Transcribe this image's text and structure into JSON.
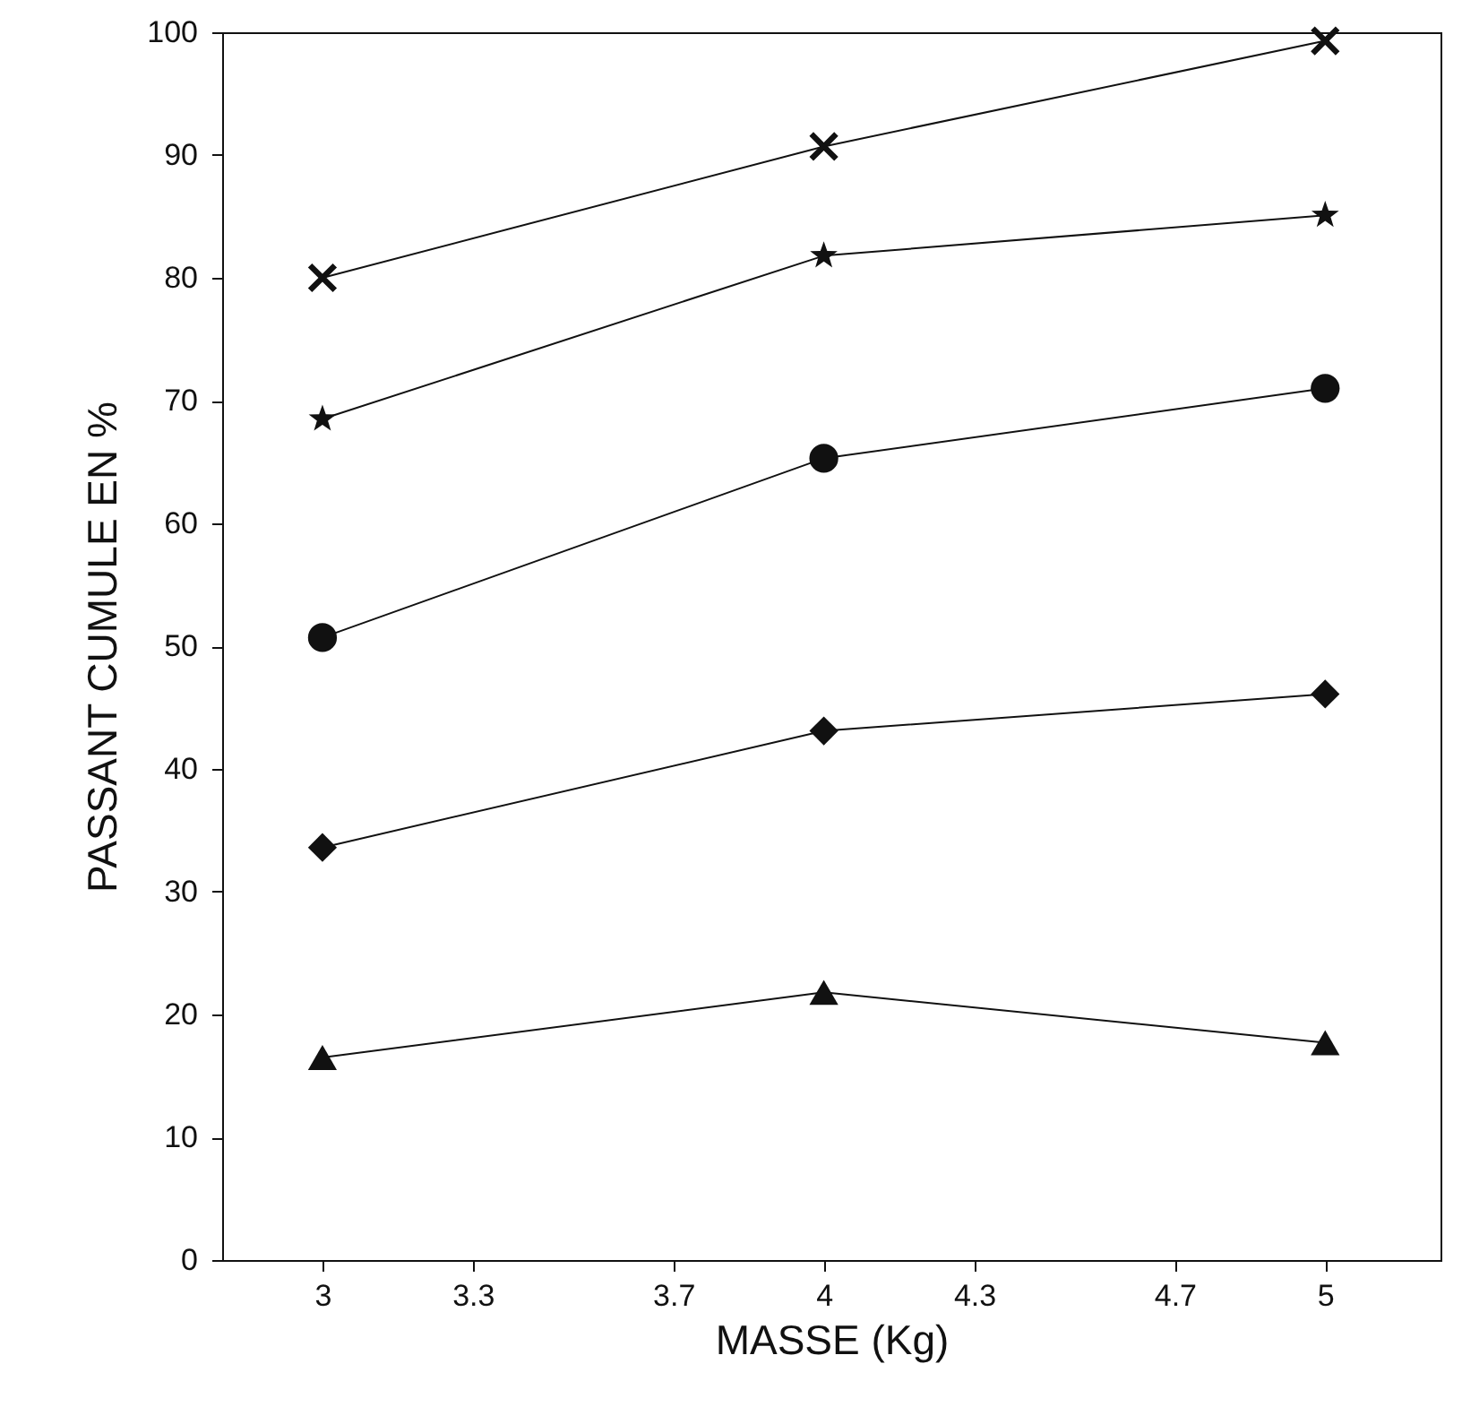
{
  "chart_data": {
    "type": "line",
    "xlabel": "MASSE (Kg)",
    "ylabel": "PASSANT CUMULE EN %",
    "x": [
      3,
      4,
      5
    ],
    "xlim": [
      2.8,
      5.23
    ],
    "xticks": [
      3,
      3.3,
      3.7,
      4,
      4.3,
      4.7,
      5
    ],
    "ylim": [
      0,
      100
    ],
    "yticks": [
      0,
      10,
      20,
      30,
      40,
      50,
      60,
      70,
      80,
      90,
      100
    ],
    "grid": false,
    "line_style": "solid",
    "series": [
      {
        "color": "#111111",
        "marker": "cross",
        "values": [
          80,
          90.7,
          99.3
        ]
      },
      {
        "color": "#111111",
        "marker": "star",
        "values": [
          68.5,
          81.8,
          85.1
        ]
      },
      {
        "color": "#111111",
        "marker": "circle",
        "values": [
          50.7,
          65.3,
          71
        ]
      },
      {
        "color": "#111111",
        "marker": "diamond",
        "values": [
          33.6,
          43.1,
          46.1
        ]
      },
      {
        "color": "#111111",
        "marker": "triangle",
        "values": [
          16.5,
          21.8,
          17.7
        ]
      }
    ]
  }
}
